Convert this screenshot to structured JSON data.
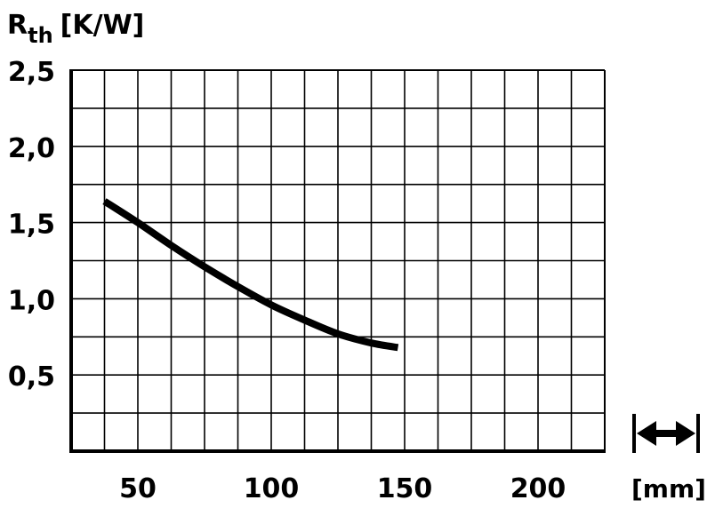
{
  "chart_data": {
    "type": "line",
    "ylabel_main": "R",
    "ylabel_sub": "th",
    "ylabel_unit": "[K/W]",
    "xlabel_unit": "[mm]",
    "x_ticks": [
      "50",
      "100",
      "150",
      "200"
    ],
    "x_tick_values": [
      50,
      100,
      150,
      200
    ],
    "y_ticks": [
      "0,5",
      "1,0",
      "1,5",
      "2,0",
      "2,5"
    ],
    "y_tick_values": [
      0.5,
      1.0,
      1.5,
      2.0,
      2.5
    ],
    "xlim": [
      25,
      225
    ],
    "ylim": [
      0,
      2.5
    ],
    "grid": true,
    "series": [
      {
        "x": [
          37.5,
          50,
          62.5,
          75,
          87.5,
          100,
          112.5,
          125,
          137.5,
          147.5
        ],
        "y": [
          1.64,
          1.5,
          1.35,
          1.21,
          1.08,
          0.96,
          0.86,
          0.77,
          0.71,
          0.68
        ]
      }
    ],
    "width_indicator": "double-arrow-icon"
  }
}
